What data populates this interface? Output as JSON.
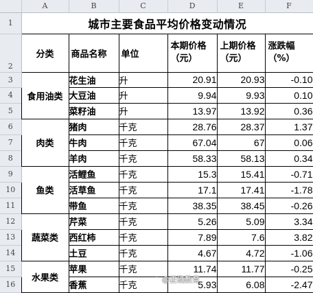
{
  "columns": [
    "A",
    "B",
    "C",
    "D",
    "E",
    "F"
  ],
  "row_numbers": [
    "1",
    "2",
    "3",
    "4",
    "5",
    "6",
    "7",
    "8",
    "9",
    "10",
    "11",
    "12",
    "13",
    "14",
    "15",
    "16"
  ],
  "title": "城市主要食品平均价格变动情况",
  "headers": {
    "category": "分类",
    "name": "商品名称",
    "unit": "单位",
    "current": "本期价格（元）",
    "previous": "上期价格（元）",
    "change": "涨跌幅（%）"
  },
  "groups": [
    {
      "category": "食用油类",
      "items": [
        {
          "name": "花生油",
          "unit": "升",
          "current": "20.91",
          "previous": "20.93",
          "change": "-0.10"
        },
        {
          "name": "大豆油",
          "unit": "升",
          "current": "9.94",
          "previous": "9.93",
          "change": "0.10"
        },
        {
          "name": "菜籽油",
          "unit": "升",
          "current": "13.97",
          "previous": "13.92",
          "change": "0.36"
        }
      ]
    },
    {
      "category": "肉类",
      "items": [
        {
          "name": "猪肉",
          "unit": "千克",
          "current": "28.76",
          "previous": "28.37",
          "change": "1.37"
        },
        {
          "name": "牛肉",
          "unit": "千克",
          "current": "67.04",
          "previous": "67",
          "change": "0.06"
        },
        {
          "name": "羊肉",
          "unit": "千克",
          "current": "58.33",
          "previous": "58.13",
          "change": "0.34"
        }
      ]
    },
    {
      "category": "鱼类",
      "items": [
        {
          "name": "活鲤鱼",
          "unit": "千克",
          "current": "15.3",
          "previous": "15.41",
          "change": "-0.71"
        },
        {
          "name": "活草鱼",
          "unit": "千克",
          "current": "17.1",
          "previous": "17.41",
          "change": "-1.78"
        },
        {
          "name": "带鱼",
          "unit": "千克",
          "current": "38.35",
          "previous": "38.45",
          "change": "-0.26"
        }
      ]
    },
    {
      "category": "蔬菜类",
      "items": [
        {
          "name": "芹菜",
          "unit": "千克",
          "current": "5.26",
          "previous": "5.09",
          "change": "3.34"
        },
        {
          "name": "西红柿",
          "unit": "千克",
          "current": "7.89",
          "previous": "7.6",
          "change": "3.82"
        },
        {
          "name": "土豆",
          "unit": "千克",
          "current": "4.67",
          "previous": "4.72",
          "change": "-1.06"
        }
      ]
    },
    {
      "category": "水果类",
      "items": [
        {
          "name": "苹果",
          "unit": "千克",
          "current": "11.74",
          "previous": "11.77",
          "change": "-0.25"
        },
        {
          "name": "香蕉",
          "unit": "千克",
          "current": "5.93",
          "previous": "6.08",
          "change": "-2.47"
        }
      ]
    }
  ],
  "watermark": "@正确教育",
  "icons": {
    "watermark": "weibo-icon"
  }
}
